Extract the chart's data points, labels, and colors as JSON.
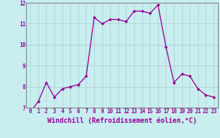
{
  "x": [
    0,
    1,
    2,
    3,
    4,
    5,
    6,
    7,
    8,
    9,
    10,
    11,
    12,
    13,
    14,
    15,
    16,
    17,
    18,
    19,
    20,
    21,
    22,
    23
  ],
  "y": [
    6.8,
    7.3,
    8.2,
    7.5,
    7.9,
    8.0,
    8.1,
    8.5,
    11.3,
    11.0,
    11.2,
    11.2,
    11.1,
    11.6,
    11.6,
    11.5,
    11.9,
    9.9,
    8.2,
    8.6,
    8.5,
    7.9,
    7.6,
    7.5
  ],
  "line_color": "#990099",
  "marker": "D",
  "marker_size": 2,
  "background_color": "#c8eef0",
  "grid_color": "#b0cfd4",
  "xlabel": "Windchill (Refroidissement éolien,°C)",
  "xlabel_color": "#990099",
  "tick_color": "#990099",
  "ylim": [
    7,
    12
  ],
  "xlim": [
    -0.5,
    23.5
  ],
  "yticks": [
    7,
    8,
    9,
    10,
    11,
    12
  ],
  "xticks": [
    0,
    1,
    2,
    3,
    4,
    5,
    6,
    7,
    8,
    9,
    10,
    11,
    12,
    13,
    14,
    15,
    16,
    17,
    18,
    19,
    20,
    21,
    22,
    23
  ],
  "tick_fontsize": 5.5,
  "xlabel_fontsize": 7.0,
  "line_width": 1.0
}
